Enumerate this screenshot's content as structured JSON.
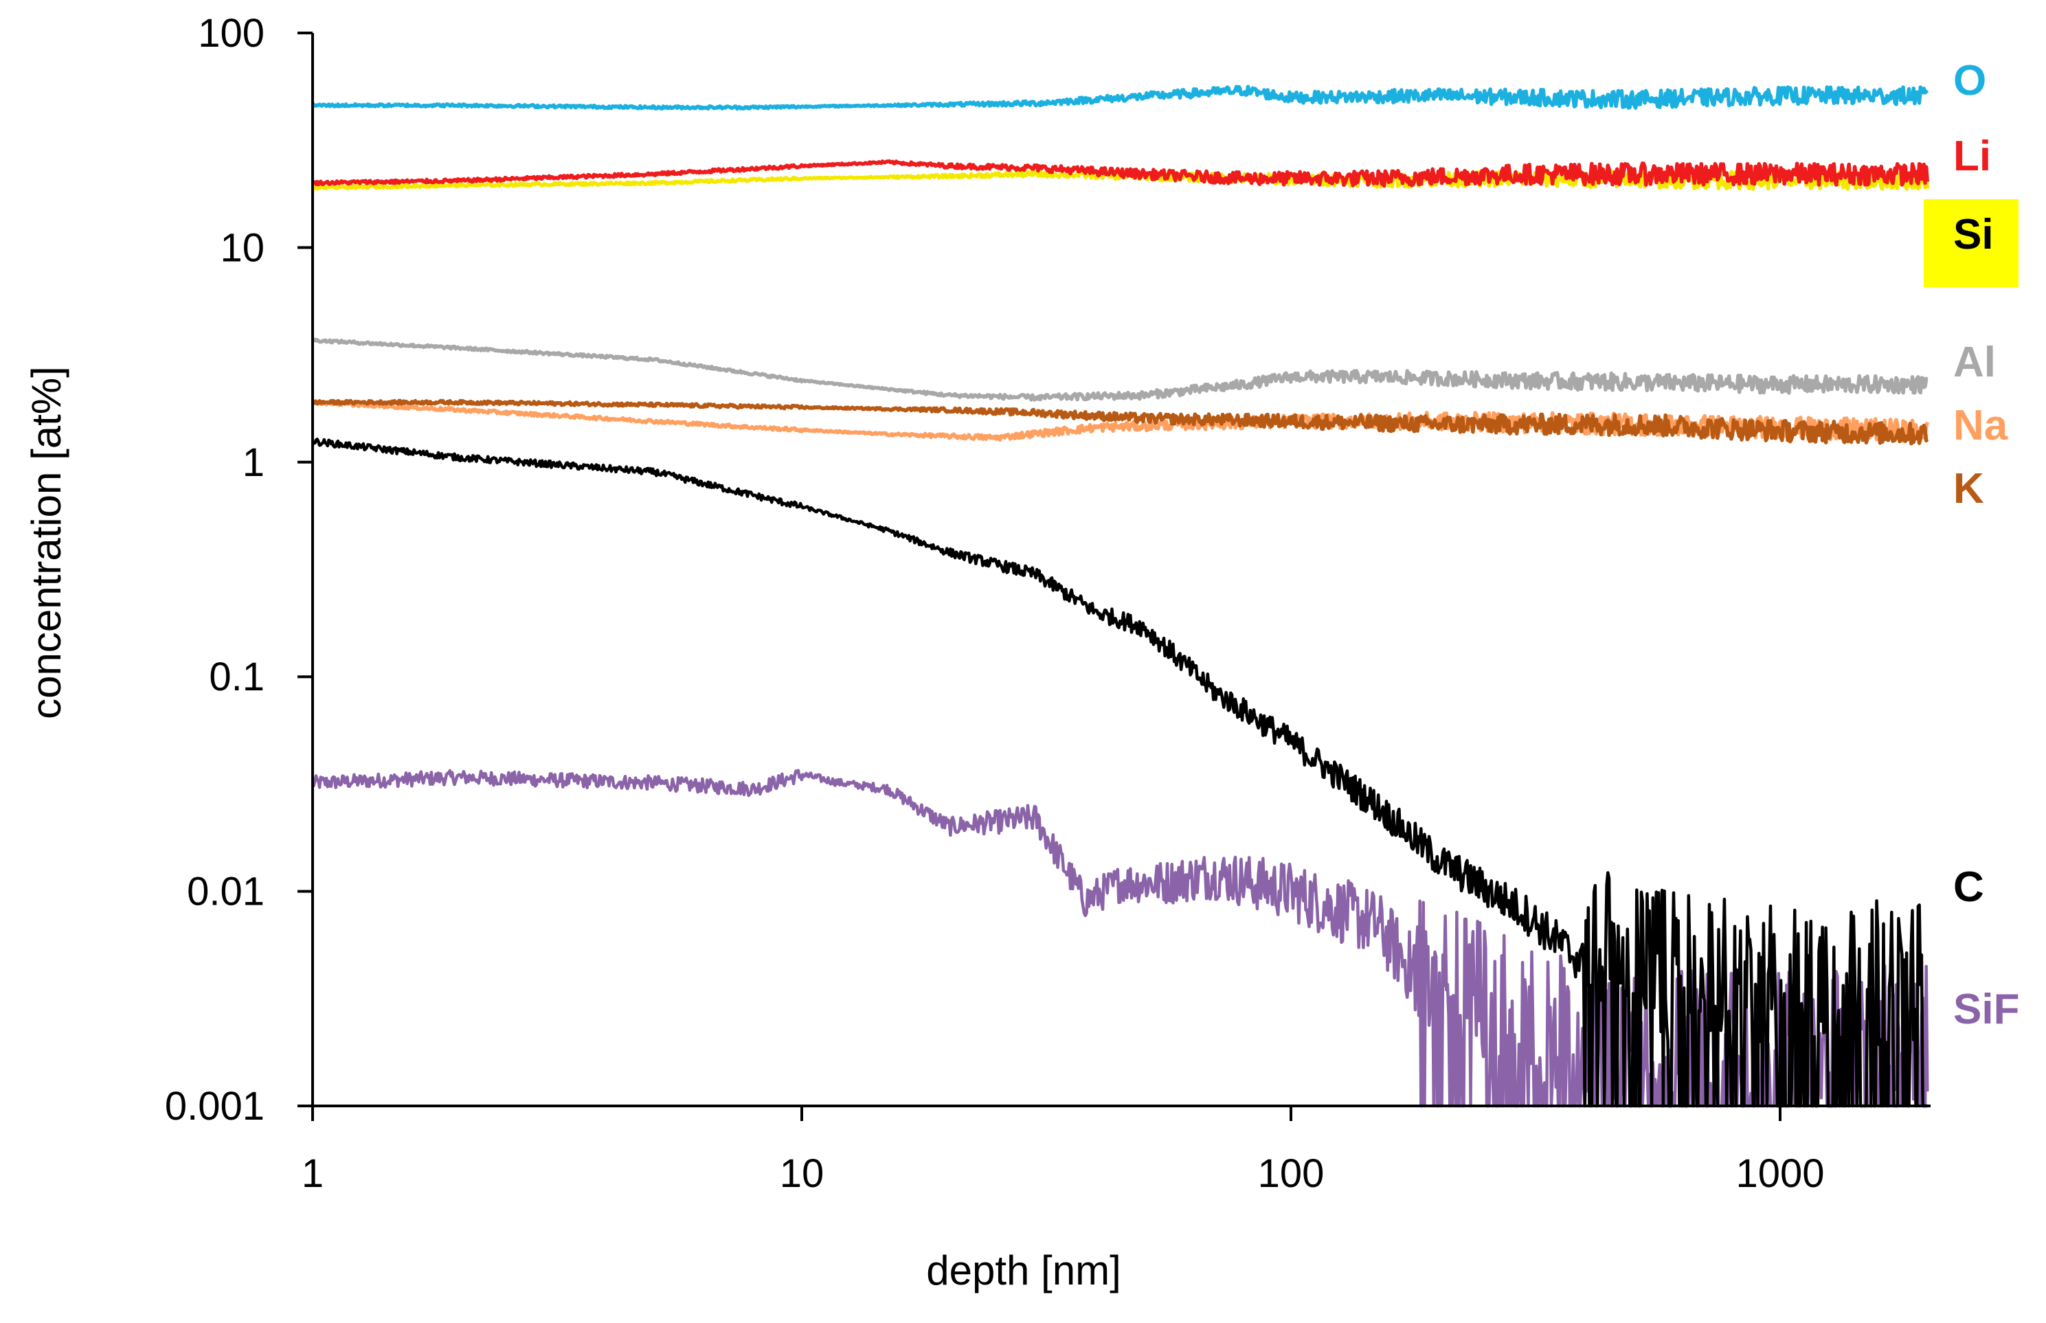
{
  "chart_data": {
    "type": "line",
    "title": "",
    "xlabel": "depth [nm]",
    "ylabel": "concentration [at%]",
    "x_scale": "log",
    "y_scale": "log",
    "xlim": [
      1,
      2000
    ],
    "ylim": [
      0.001,
      100
    ],
    "x_ticks": [
      1,
      10,
      100,
      1000
    ],
    "x_tick_labels": [
      "1",
      "10",
      "100",
      "1000"
    ],
    "y_ticks": [
      0.001,
      0.01,
      0.1,
      1,
      10,
      100
    ],
    "y_tick_labels": [
      "0.001",
      "0.01",
      "0.1",
      "1",
      "10",
      "100"
    ],
    "grid": false,
    "legend_position": "right",
    "series": [
      {
        "name": "O",
        "color": "#1cb0e0",
        "label_highlight": "",
        "x": [
          1,
          2,
          5,
          8,
          15,
          30,
          60,
          80,
          100,
          200,
          500,
          1000,
          2000
        ],
        "y": [
          46,
          46,
          45,
          45,
          46,
          47,
          52,
          54,
          50,
          51,
          49,
          51,
          51
        ],
        "noise": 0.04
      },
      {
        "name": "Li",
        "color": "#ee1c1c",
        "label_highlight": "",
        "x": [
          1,
          2,
          5,
          10,
          15,
          20,
          30,
          50,
          80,
          150,
          300,
          1000,
          2000
        ],
        "y": [
          20,
          20.5,
          22,
          24,
          25,
          24,
          23.5,
          22,
          21,
          21,
          22,
          22,
          22
        ],
        "noise": 0.05
      },
      {
        "name": "Si",
        "color": "#f5e800",
        "label_highlight": "#ffff00",
        "x": [
          1,
          2,
          5,
          10,
          20,
          30,
          50,
          80,
          150,
          300,
          1000,
          2000
        ],
        "y": [
          19,
          19.5,
          20,
          21,
          21.5,
          22,
          21.5,
          21,
          20.5,
          21,
          20.5,
          20.5
        ],
        "noise": 0.04
      },
      {
        "name": "Al",
        "color": "#a8a8a8",
        "label_highlight": "",
        "x": [
          1,
          2,
          5,
          10,
          20,
          30,
          50,
          80,
          100,
          150,
          300,
          1000,
          2000
        ],
        "y": [
          3.7,
          3.4,
          3.0,
          2.4,
          2.05,
          2.0,
          2.05,
          2.3,
          2.5,
          2.5,
          2.4,
          2.3,
          2.3
        ],
        "noise": 0.04
      },
      {
        "name": "Na",
        "color": "#ffa060",
        "label_highlight": "",
        "x": [
          1,
          2,
          5,
          8,
          15,
          25,
          40,
          60,
          100,
          200,
          500,
          1000,
          2000
        ],
        "y": [
          1.9,
          1.75,
          1.55,
          1.45,
          1.35,
          1.3,
          1.45,
          1.5,
          1.55,
          1.55,
          1.5,
          1.45,
          1.4
        ],
        "noise": 0.05
      },
      {
        "name": "K",
        "color": "#b85a14",
        "label_highlight": "",
        "x": [
          1,
          2,
          5,
          10,
          20,
          30,
          50,
          100,
          200,
          500,
          1000,
          2000
        ],
        "y": [
          1.9,
          1.9,
          1.85,
          1.8,
          1.75,
          1.7,
          1.6,
          1.55,
          1.5,
          1.5,
          1.4,
          1.35
        ],
        "noise": 0.05
      },
      {
        "name": "C",
        "color": "#000000",
        "label_highlight": "",
        "x": [
          1,
          2,
          5,
          10,
          15,
          20,
          30,
          40,
          50,
          70,
          100,
          150,
          200,
          300,
          400,
          500,
          700,
          1000,
          2000
        ],
        "y": [
          1.25,
          1.05,
          0.9,
          0.62,
          0.48,
          0.38,
          0.3,
          0.2,
          0.17,
          0.085,
          0.05,
          0.025,
          0.014,
          0.008,
          0.0045,
          0.0035,
          0.003,
          0.003,
          0.003
        ],
        "noise": 0.1
      },
      {
        "name": "SiF",
        "color": "#8a63a8",
        "label_highlight": "",
        "x": [
          1,
          2,
          5,
          8,
          10,
          12,
          15,
          20,
          30,
          38,
          45,
          55,
          70,
          100,
          150,
          200,
          300,
          500,
          1000,
          2000
        ],
        "y": [
          0.032,
          0.034,
          0.032,
          0.03,
          0.035,
          0.032,
          0.03,
          0.02,
          0.022,
          0.009,
          0.011,
          0.011,
          0.012,
          0.01,
          0.007,
          0.003,
          0.002,
          0.0015,
          0.0015,
          0.0015
        ],
        "noise": 0.22
      }
    ]
  }
}
